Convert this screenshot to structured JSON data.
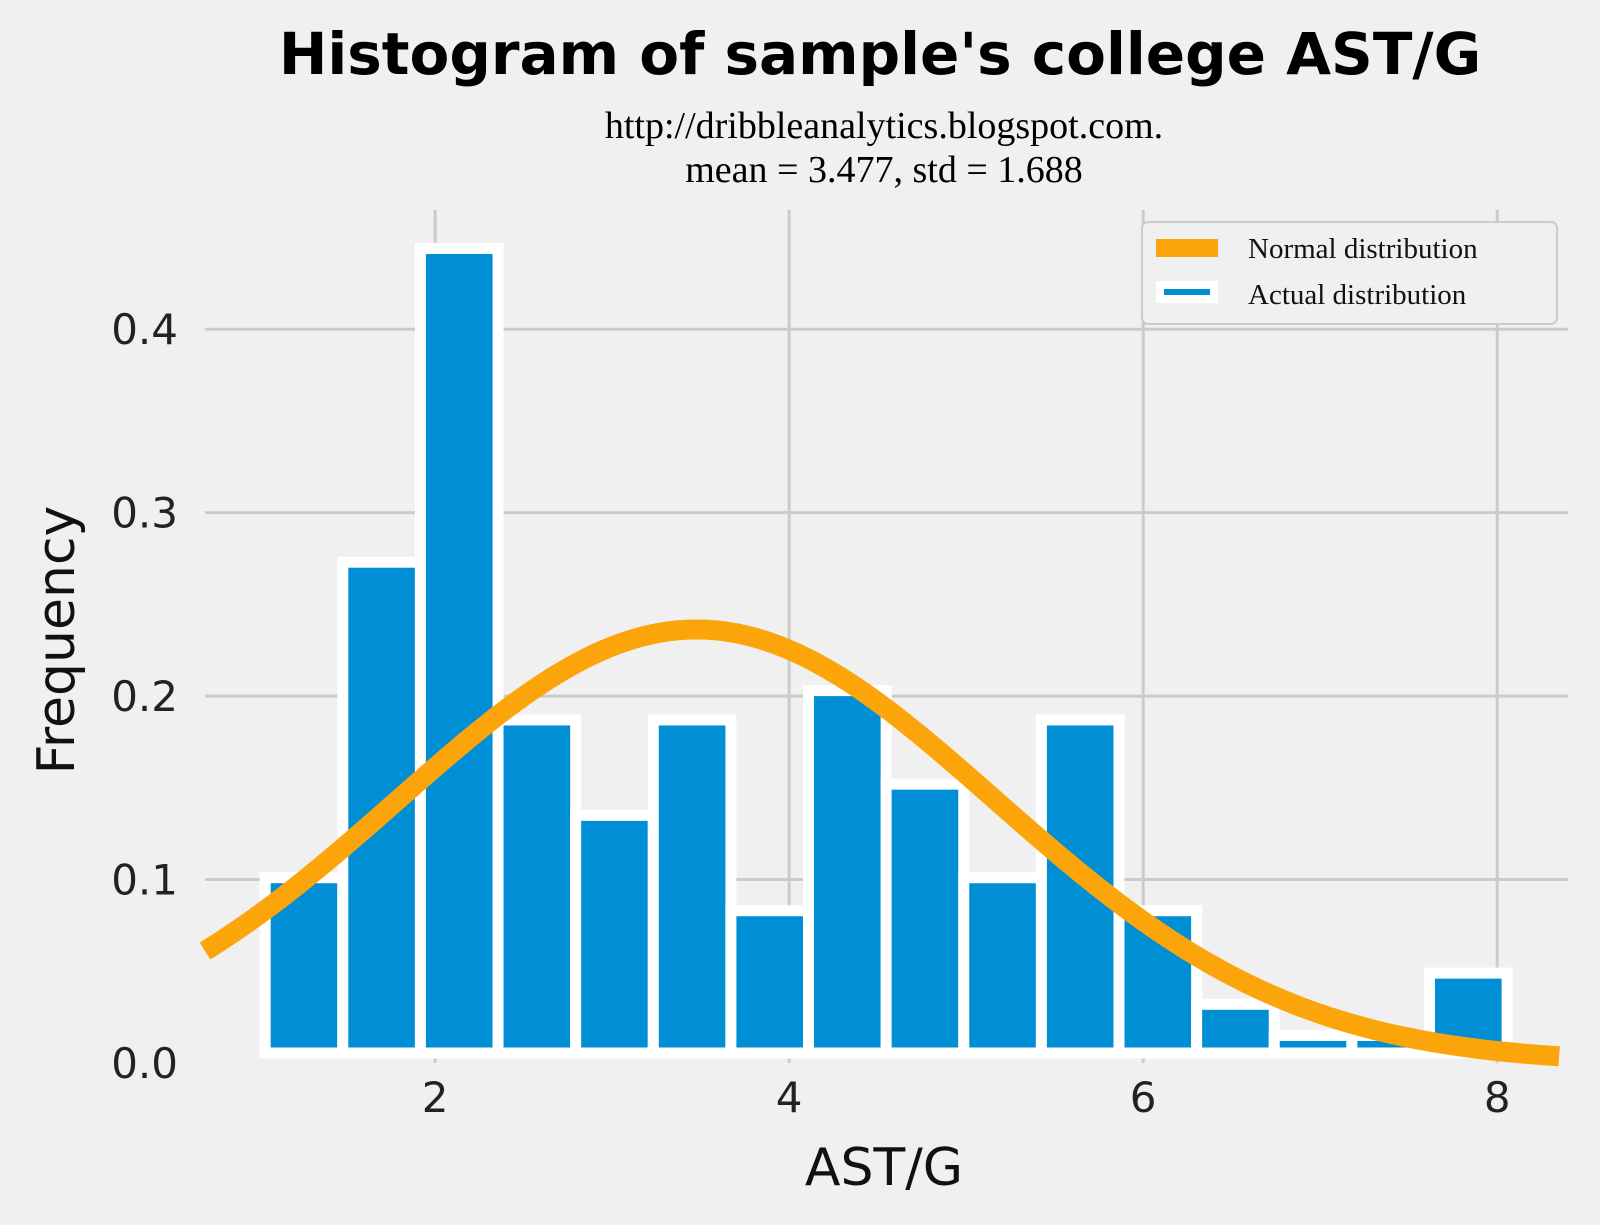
{
  "chart_data": {
    "type": "bar",
    "title": "Histogram of sample's college AST/G",
    "subtitle_lines": [
      "http://dribbleanalytics.blogspot.com.",
      "mean = 3.477, std = 1.688"
    ],
    "xlabel": "AST/G",
    "ylabel": "Frequency",
    "xlim": [
      0.7,
      8.4
    ],
    "ylim": [
      0,
      0.465
    ],
    "x_ticks": [
      2,
      4,
      6,
      8
    ],
    "y_ticks": [
      "0.0",
      "0.1",
      "0.2",
      "0.3",
      "0.4"
    ],
    "y_tick_values": [
      0,
      0.1,
      0.2,
      0.3,
      0.4
    ],
    "grid": true,
    "legend_position": "top-right",
    "series": [
      {
        "name": "Actual distribution",
        "kind": "histogram",
        "color": "#008fd5",
        "bin_start": 1.04,
        "bin_width": 0.4385,
        "values": [
          0.101,
          0.273,
          0.444,
          0.187,
          0.135,
          0.187,
          0.083,
          0.203,
          0.152,
          0.101,
          0.187,
          0.083,
          0.032,
          0.015,
          0.015,
          0.049
        ]
      },
      {
        "name": "Normal distribution",
        "kind": "normal_pdf",
        "color": "#fca50a",
        "mean": 3.477,
        "std": 1.688,
        "x_range": [
          0.7,
          8.35
        ]
      }
    ]
  }
}
